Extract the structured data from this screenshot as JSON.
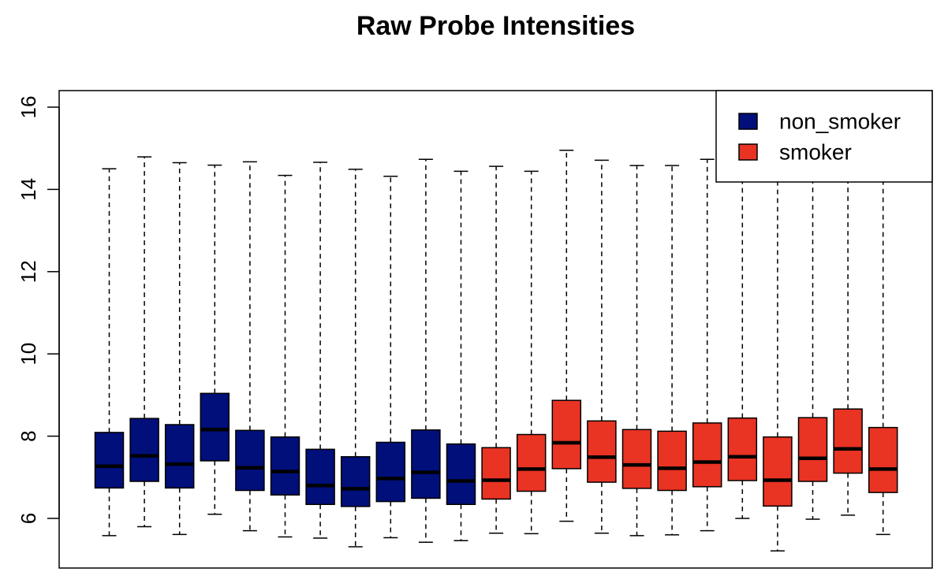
{
  "chart_data": {
    "type": "box",
    "title": "Raw Probe Intensities",
    "xlabel": "",
    "ylabel": "",
    "ylim": [
      5,
      16.5
    ],
    "yticks": [
      6,
      8,
      10,
      12,
      14,
      16
    ],
    "grid": false,
    "legend_position": "top-right",
    "groups": [
      {
        "name": "non_smoker",
        "color": "#000F7A"
      },
      {
        "name": "smoker",
        "color": "#E93323"
      }
    ],
    "boxes": [
      {
        "group": "non_smoker",
        "min": 5.58,
        "q1": 6.74,
        "median": 7.27,
        "q3": 8.09,
        "max": 14.5
      },
      {
        "group": "non_smoker",
        "min": 5.8,
        "q1": 6.9,
        "median": 7.52,
        "q3": 8.43,
        "max": 14.79
      },
      {
        "group": "non_smoker",
        "min": 5.61,
        "q1": 6.74,
        "median": 7.32,
        "q3": 8.28,
        "max": 14.65
      },
      {
        "group": "non_smoker",
        "min": 6.1,
        "q1": 7.4,
        "median": 8.16,
        "q3": 9.04,
        "max": 14.59
      },
      {
        "group": "non_smoker",
        "min": 5.7,
        "q1": 6.68,
        "median": 7.23,
        "q3": 8.14,
        "max": 14.67
      },
      {
        "group": "non_smoker",
        "min": 5.55,
        "q1": 6.57,
        "median": 7.14,
        "q3": 7.98,
        "max": 14.34
      },
      {
        "group": "non_smoker",
        "min": 5.52,
        "q1": 6.34,
        "median": 6.8,
        "q3": 7.68,
        "max": 14.66
      },
      {
        "group": "non_smoker",
        "min": 5.31,
        "q1": 6.29,
        "median": 6.72,
        "q3": 7.5,
        "max": 14.49
      },
      {
        "group": "non_smoker",
        "min": 5.53,
        "q1": 6.41,
        "median": 6.97,
        "q3": 7.85,
        "max": 14.32
      },
      {
        "group": "non_smoker",
        "min": 5.42,
        "q1": 6.49,
        "median": 7.12,
        "q3": 8.15,
        "max": 14.73
      },
      {
        "group": "non_smoker",
        "min": 5.46,
        "q1": 6.34,
        "median": 6.91,
        "q3": 7.81,
        "max": 14.44
      },
      {
        "group": "smoker",
        "min": 5.64,
        "q1": 6.47,
        "median": 6.93,
        "q3": 7.72,
        "max": 14.56
      },
      {
        "group": "smoker",
        "min": 5.63,
        "q1": 6.66,
        "median": 7.2,
        "q3": 8.04,
        "max": 14.44
      },
      {
        "group": "smoker",
        "min": 5.93,
        "q1": 7.21,
        "median": 7.84,
        "q3": 8.87,
        "max": 14.95
      },
      {
        "group": "smoker",
        "min": 5.64,
        "q1": 6.88,
        "median": 7.49,
        "q3": 8.37,
        "max": 14.71
      },
      {
        "group": "smoker",
        "min": 5.58,
        "q1": 6.73,
        "median": 7.3,
        "q3": 8.16,
        "max": 14.58
      },
      {
        "group": "smoker",
        "min": 5.6,
        "q1": 6.68,
        "median": 7.22,
        "q3": 8.12,
        "max": 14.58
      },
      {
        "group": "smoker",
        "min": 5.7,
        "q1": 6.77,
        "median": 7.37,
        "q3": 8.32,
        "max": 14.73
      },
      {
        "group": "smoker",
        "min": 6.0,
        "q1": 6.92,
        "median": 7.5,
        "q3": 8.44,
        "max": 14.6
      },
      {
        "group": "smoker",
        "min": 5.21,
        "q1": 6.3,
        "median": 6.93,
        "q3": 7.98,
        "max": 14.6
      },
      {
        "group": "smoker",
        "min": 5.98,
        "q1": 6.9,
        "median": 7.46,
        "q3": 8.45,
        "max": 14.6
      },
      {
        "group": "smoker",
        "min": 6.08,
        "q1": 7.1,
        "median": 7.69,
        "q3": 8.66,
        "max": 14.6
      },
      {
        "group": "smoker",
        "min": 5.61,
        "q1": 6.63,
        "median": 7.2,
        "q3": 8.21,
        "max": 14.6
      }
    ]
  }
}
